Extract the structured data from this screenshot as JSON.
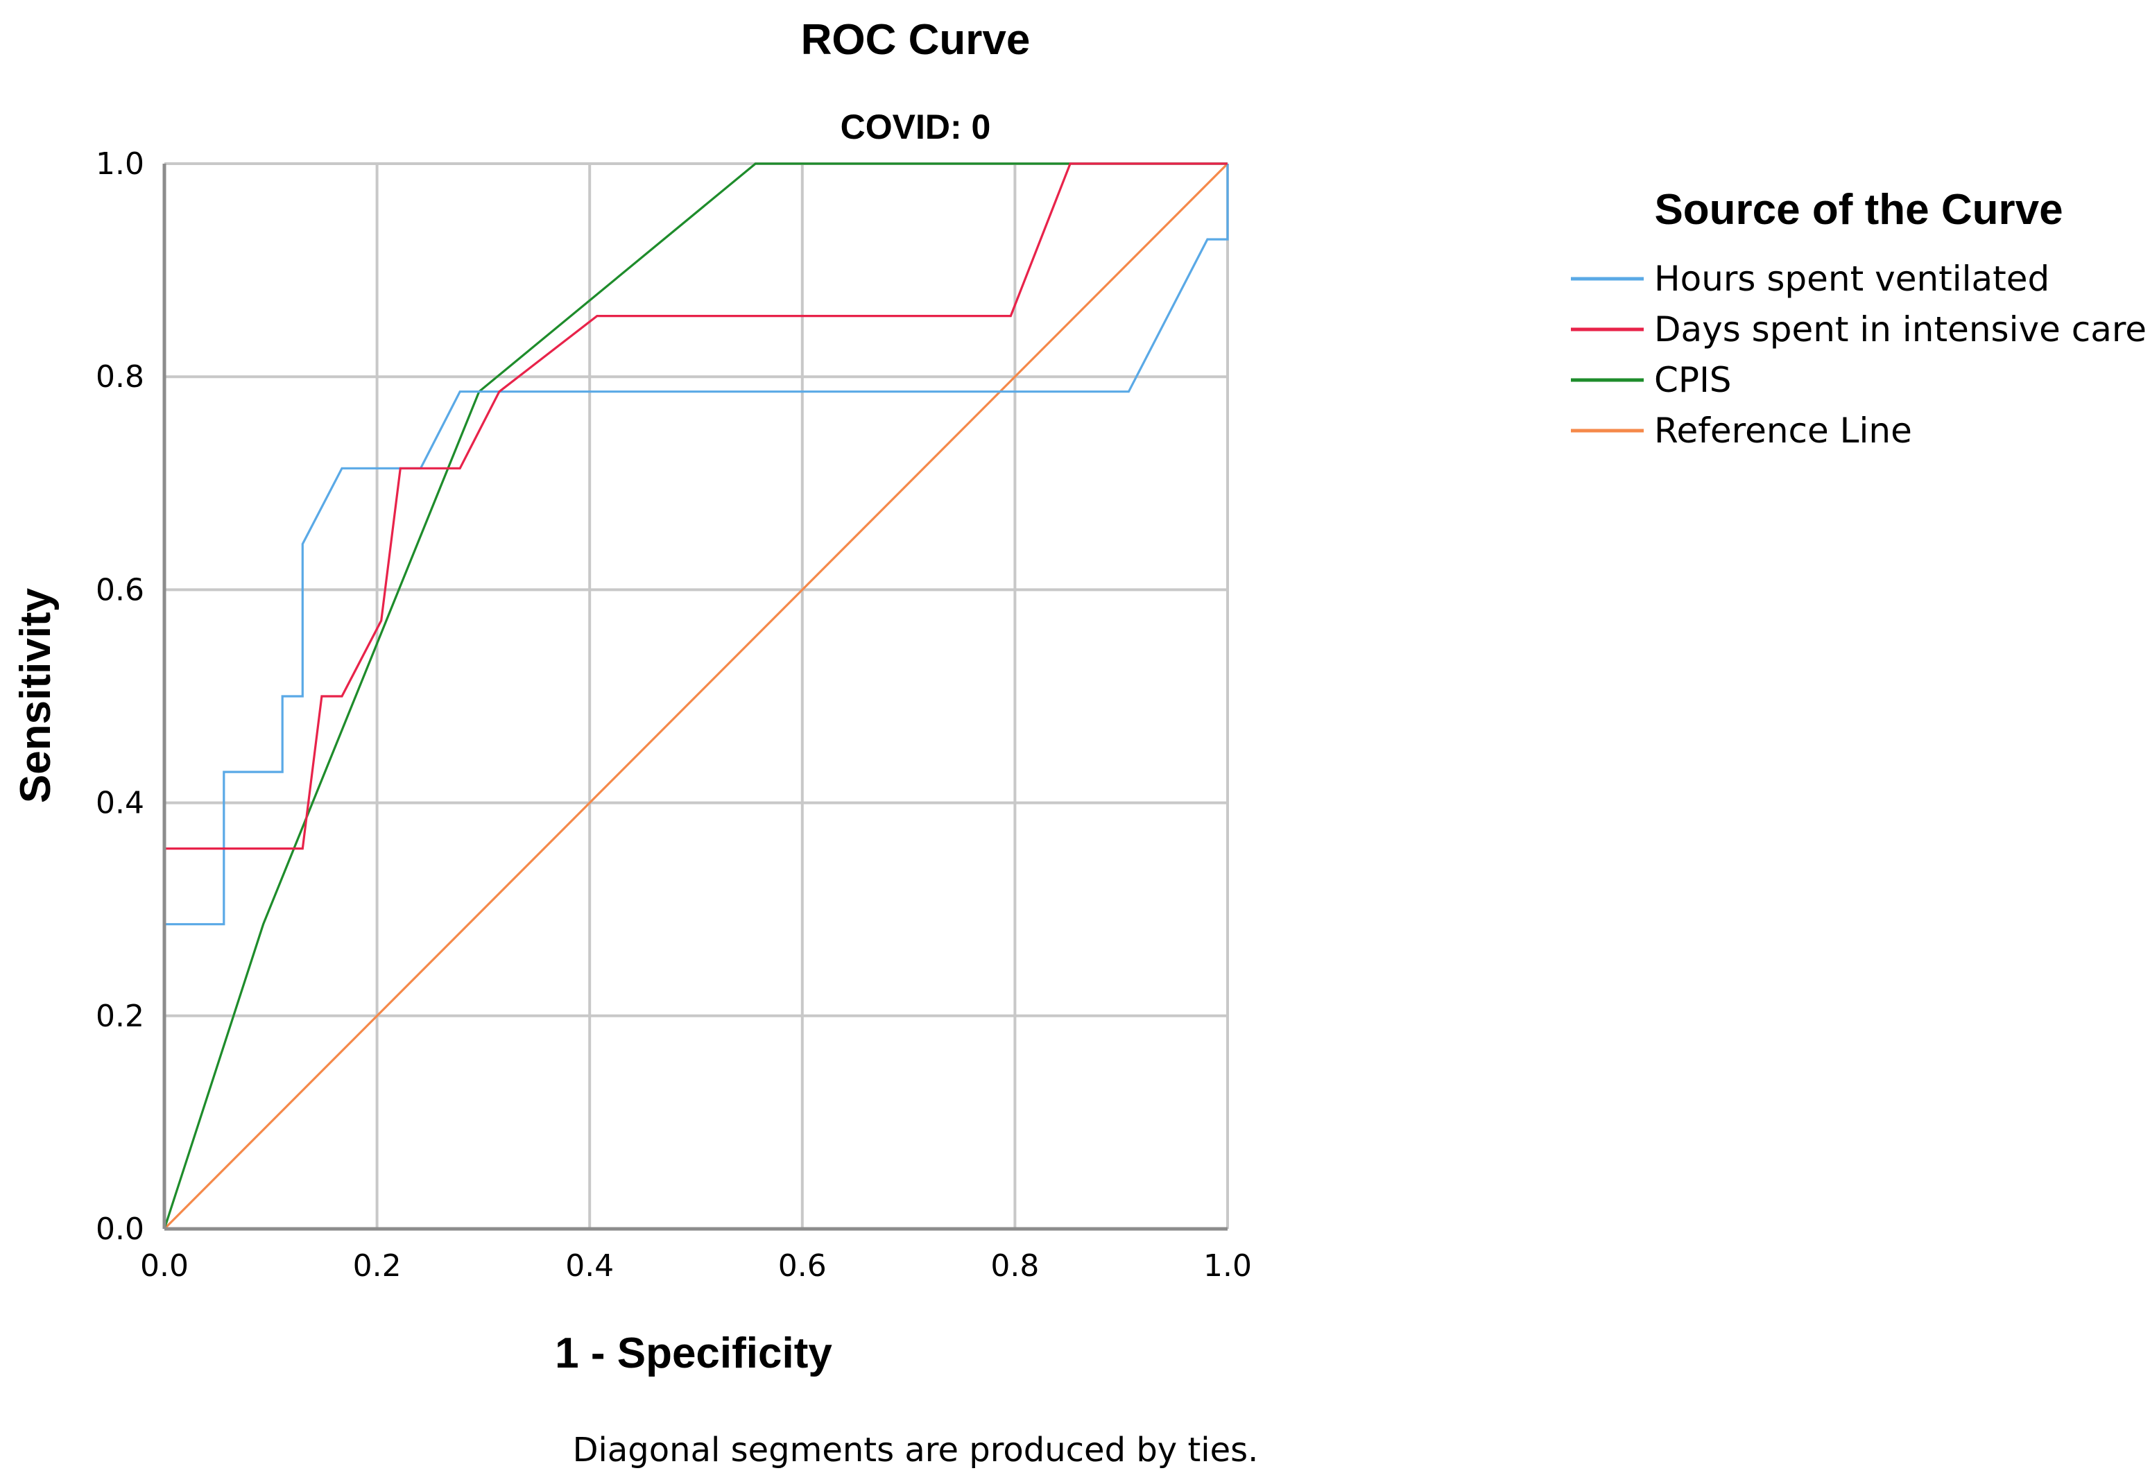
{
  "chart_data": {
    "type": "line",
    "title": "ROC Curve",
    "subtitle": "COVID: 0",
    "xlabel": "1 - Specificity",
    "ylabel": "Sensitivity",
    "xlim": [
      0,
      1
    ],
    "ylim": [
      0,
      1
    ],
    "grid": true,
    "x_ticks": [
      "0.0",
      "0.2",
      "0.4",
      "0.6",
      "0.8",
      "1.0"
    ],
    "y_ticks": [
      "0.0",
      "0.2",
      "0.4",
      "0.6",
      "0.8",
      "1.0"
    ],
    "legend_title": "Source of the Curve",
    "legend_position": "right",
    "footnote": "Diagonal segments are produced by ties.",
    "series": [
      {
        "name": "Hours spent ventilated",
        "color": "#5aa9e6",
        "x": [
          0,
          0,
          0.056,
          0.056,
          0.111,
          0.111,
          0.13,
          0.13,
          0.167,
          0.241,
          0.278,
          0.907,
          0.981,
          1.0,
          1.0
        ],
        "y": [
          0,
          0.286,
          0.286,
          0.429,
          0.429,
          0.5,
          0.5,
          0.643,
          0.714,
          0.714,
          0.786,
          0.786,
          0.929,
          0.929,
          1.0
        ]
      },
      {
        "name": "Days spent in intensive care",
        "color": "#e8234a",
        "x": [
          0,
          0,
          0.13,
          0.148,
          0.167,
          0.204,
          0.222,
          0.278,
          0.315,
          0.407,
          0.796,
          0.852,
          1.0
        ],
        "y": [
          0,
          0.357,
          0.357,
          0.5,
          0.5,
          0.571,
          0.714,
          0.714,
          0.786,
          0.857,
          0.857,
          1.0,
          1.0
        ]
      },
      {
        "name": "CPIS",
        "color": "#1e8c2b",
        "x": [
          0,
          0.093,
          0.296,
          0.556,
          1.0
        ],
        "y": [
          0,
          0.286,
          0.786,
          1.0,
          1.0
        ]
      },
      {
        "name": "Reference Line",
        "color": "#f5894a",
        "x": [
          0,
          1
        ],
        "y": [
          0,
          1
        ]
      }
    ]
  }
}
